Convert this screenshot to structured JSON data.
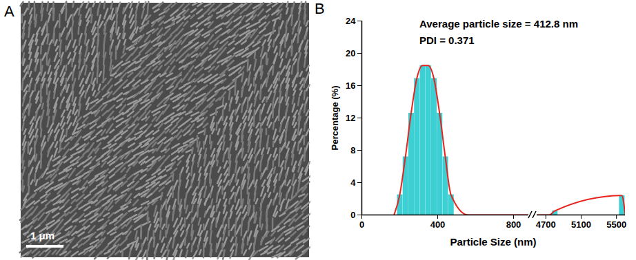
{
  "panel_labels": [
    "A",
    "B"
  ],
  "image": {
    "scale_bar": "1 μm"
  },
  "chart_data": {
    "type": "bar",
    "annotations": [
      "Average particle size = 412.8 nm",
      "PDI = 0.371"
    ],
    "xlabel": "Particle Size (nm)",
    "ylabel": "Percentage (%)",
    "x_segments": [
      {
        "xlim": [
          0,
          880
        ],
        "xticks": [
          0,
          400,
          800
        ]
      },
      {
        "xlim": [
          4600,
          5600
        ],
        "xticks": [
          4700,
          5100,
          5500
        ]
      }
    ],
    "ylim": [
      0,
      24
    ],
    "yticks": [
      0,
      4,
      8,
      12,
      16,
      20,
      24
    ],
    "series": [
      {
        "type": "bar",
        "color": "#3ccfd3",
        "x": [
          200,
          230,
          260,
          290,
          320,
          350,
          380,
          410,
          440,
          470,
          4801,
          5560
        ],
        "values": [
          2.5,
          7.2,
          12.6,
          16.9,
          18.5,
          18.5,
          16.9,
          12.6,
          7.2,
          2.5,
          0.5,
          2.4
        ]
      },
      {
        "type": "line",
        "color": "#e8231e",
        "x": [
          170,
          200,
          230,
          260,
          290,
          320,
          350,
          380,
          410,
          440,
          470,
          560,
          4740,
          4801,
          5560,
          5600
        ],
        "values": [
          0,
          2.5,
          7.2,
          12.6,
          16.9,
          18.5,
          18.5,
          16.9,
          12.6,
          7.2,
          2.5,
          0,
          0,
          0.5,
          2.4,
          0
        ]
      }
    ]
  }
}
